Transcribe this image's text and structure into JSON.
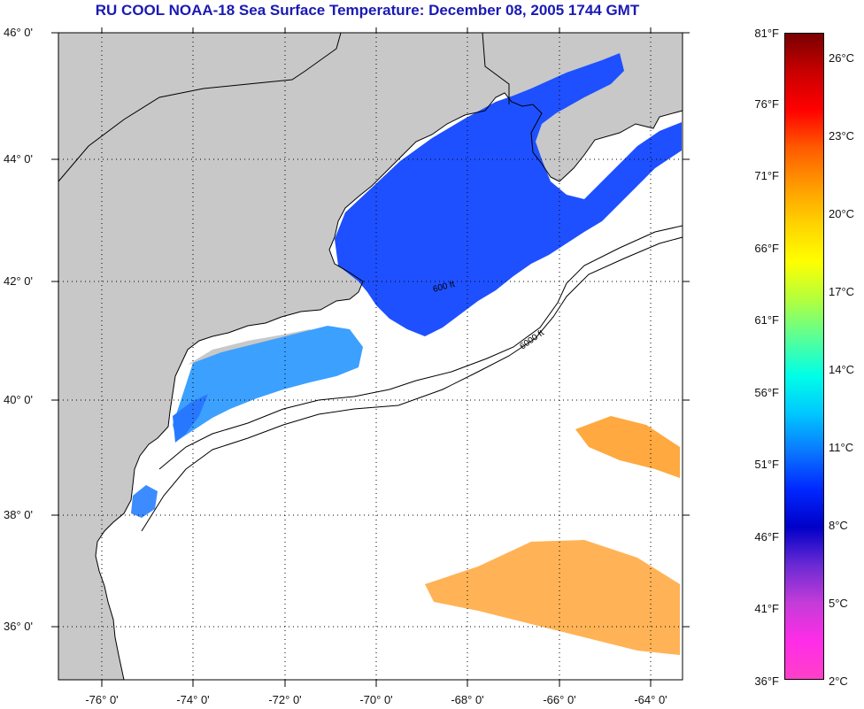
{
  "header": {
    "title": "RU COOL  NOAA-18  Sea Surface Temperature:  December 08, 2005 1744 GMT"
  },
  "map": {
    "latitude_labels": [
      "46° 0'",
      "44° 0'",
      "42° 0'",
      "40° 0'",
      "38° 0'",
      "36° 0'"
    ],
    "longitude_labels": [
      "-76° 0'",
      "-74° 0'",
      "-72° 0'",
      "-70° 0'",
      "-68° 0'",
      "-66° 0'",
      "-64° 0'"
    ],
    "contour_labels": [
      "600 ft",
      "6000 ft"
    ],
    "colors": {
      "land": "#c8c8c8",
      "no_data": "#ffffff",
      "coastline": "#000000",
      "gridline": "#000000"
    }
  },
  "colorbar": {
    "fahrenheit_labels": [
      "81°F",
      "76°F",
      "71°F",
      "66°F",
      "61°F",
      "56°F",
      "51°F",
      "46°F",
      "41°F",
      "36°F"
    ],
    "celsius_labels": [
      "26°C",
      "23°C",
      "20°C",
      "17°C",
      "14°C",
      "11°C",
      "8°C",
      "5°C",
      "2°C"
    ],
    "gradient_top_to_bottom": [
      "#7a0000",
      "#c80000",
      "#ff0000",
      "#ff5a00",
      "#ff9a00",
      "#ffd200",
      "#ffff00",
      "#b4ff3c",
      "#5aff96",
      "#00ffe6",
      "#00c8ff",
      "#0a78ff",
      "#0028ff",
      "#0000c8",
      "#6a2ad4",
      "#c43cd8",
      "#ff2ce8",
      "#ff40c8"
    ]
  }
}
